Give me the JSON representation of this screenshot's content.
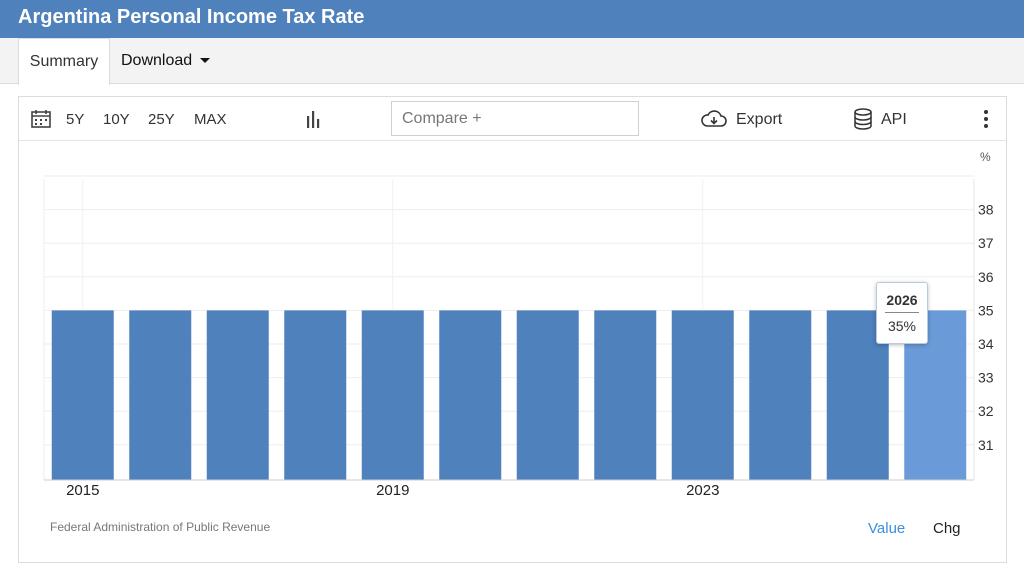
{
  "header": {
    "title": "Argentina Personal Income Tax Rate"
  },
  "tabs": {
    "summary": "Summary",
    "download": "Download"
  },
  "toolbar": {
    "range_5y": "5Y",
    "range_10y": "10Y",
    "range_25y": "25Y",
    "range_max": "MAX",
    "compare_placeholder": "Compare +",
    "export_label": "Export",
    "api_label": "API"
  },
  "icons": {
    "calendar": "calendar-icon",
    "chart_type": "bar-chart-icon",
    "export": "cloud-download-icon",
    "api": "database-icon",
    "more": "kebab-menu-icon"
  },
  "colors": {
    "header": "#4f81bd",
    "bar": "#4f81bd",
    "bar_highlight": "#6a9bd8",
    "toggle_active": "#3a8fe0"
  },
  "chart_data": {
    "type": "bar",
    "x": [
      2015,
      2016,
      2017,
      2018,
      2019,
      2020,
      2021,
      2022,
      2023,
      2024,
      2025,
      2026
    ],
    "values": [
      35,
      35,
      35,
      35,
      35,
      35,
      35,
      35,
      35,
      35,
      35,
      35
    ],
    "x_tick_labels": [
      "2015",
      "2019",
      "2023"
    ],
    "y_ticks": [
      31,
      32,
      33,
      34,
      35,
      36,
      37,
      38
    ],
    "unit": "%",
    "ylim": [
      30,
      39
    ],
    "y_axis_side": "right",
    "grid": true,
    "highlighted": {
      "x": "2026",
      "value": "35%"
    }
  },
  "footer": {
    "source": "Federal Administration of Public Revenue",
    "value_toggle": "Value",
    "chg_toggle": "Chg"
  }
}
